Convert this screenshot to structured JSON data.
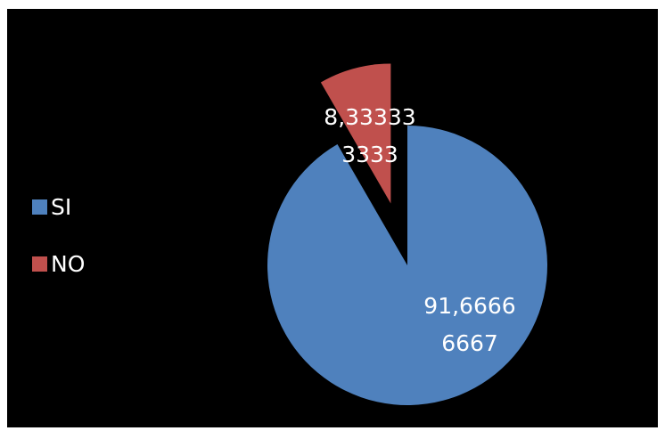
{
  "chart_data": {
    "type": "pie",
    "title": "",
    "slices": [
      {
        "name": "SI",
        "value": 91.6666666667,
        "label_lines": [
          "91,6666",
          "6667"
        ],
        "color": "#4f81bd",
        "exploded": false
      },
      {
        "name": "NO",
        "value": 8.33333333333,
        "label_lines": [
          "8,33333",
          "3333"
        ],
        "color": "#c0504d",
        "exploded": true
      }
    ],
    "legend": {
      "placement": "left",
      "entries": [
        "SI",
        "NO"
      ]
    },
    "background": "#000000"
  }
}
